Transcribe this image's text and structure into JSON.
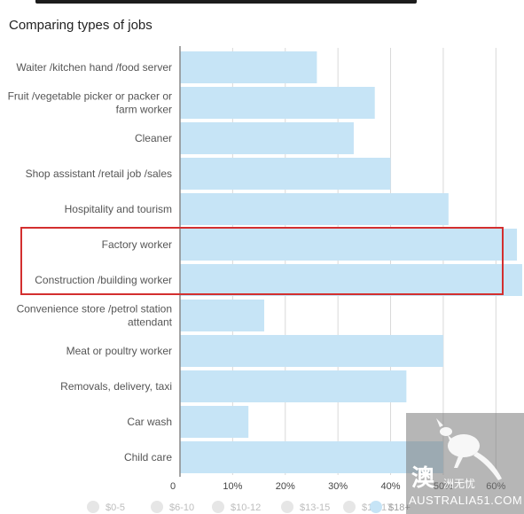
{
  "subtitle": "Comparing types of jobs",
  "chart_data": {
    "type": "bar",
    "orientation": "horizontal",
    "categories": [
      [
        "Waiter /kitchen hand /food server"
      ],
      [
        "Fruit /vegetable picker or packer or",
        "farm worker"
      ],
      [
        "Cleaner"
      ],
      [
        "Shop assistant /retail job /sales"
      ],
      [
        "Hospitality and tourism"
      ],
      [
        "Factory worker"
      ],
      [
        "Construction /building worker"
      ],
      [
        "Convenience store /petrol station",
        "attendant"
      ],
      [
        "Meat or poultry worker"
      ],
      [
        "Removals, delivery, taxi"
      ],
      [
        "Car wash"
      ],
      [
        "Child care"
      ]
    ],
    "series": [
      {
        "name": "$18+",
        "values": [
          26,
          37,
          33,
          40,
          51,
          64,
          65,
          16,
          50,
          43,
          13,
          50
        ]
      }
    ],
    "xlim": [
      0,
      65
    ],
    "ticks": [
      "0",
      "10%",
      "20%",
      "30%",
      "40%",
      "50%",
      "60%"
    ],
    "tick_values": [
      0,
      10,
      20,
      30,
      40,
      50,
      60
    ],
    "grid": true,
    "highlighted_categories": [
      5,
      6
    ],
    "highlight_color": "#d32f2f",
    "bar_color": "#c6e4f6",
    "legend": {
      "position": "bottom",
      "items": [
        {
          "label": "$0-5",
          "color": "#e6e6e6",
          "active": false
        },
        {
          "label": "$6-10",
          "color": "#e6e6e6",
          "active": false
        },
        {
          "label": "$10-12",
          "color": "#e6e6e6",
          "active": false
        },
        {
          "label": "$13-15",
          "color": "#e6e6e6",
          "active": false
        },
        {
          "label": "$15-17",
          "color": "#e6e6e6",
          "active": false
        },
        {
          "label": "$18+",
          "color": "#c6e4f6",
          "active": true
        }
      ]
    }
  },
  "watermark": {
    "brand": "AUSTRALIA51.COM",
    "glyph": "澳",
    "tagline": "洲无忧"
  }
}
